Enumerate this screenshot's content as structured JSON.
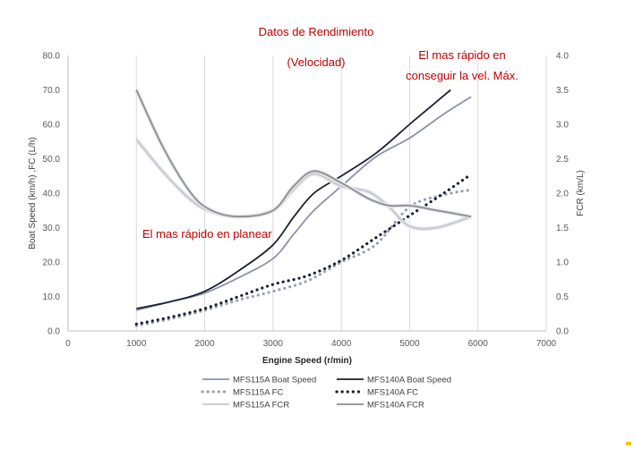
{
  "chart_data": {
    "type": "line",
    "title": "Datos de Rendimiento",
    "subtitle": "(Velocidad)",
    "xlabel": "Engine Speed (r/min)",
    "ylabel_left": "Boat Speed (km/h) ,FC (L/h)",
    "ylabel_right": "FCR (km/L)",
    "xlim": [
      0,
      7000
    ],
    "ylim_left": [
      0,
      80
    ],
    "ylim_right": [
      0,
      4
    ],
    "x_ticks": [
      0,
      1000,
      2000,
      3000,
      4000,
      5000,
      6000,
      7000
    ],
    "x_tick_labels": [
      "0",
      "1000",
      "2000",
      "3000",
      "4000",
      "5000",
      "6000",
      "7000"
    ],
    "y_left_ticks": [
      0,
      10,
      20,
      30,
      40,
      50,
      60,
      70,
      80
    ],
    "y_left_tick_labels": [
      "0.0",
      "10.0",
      "20.0",
      "30.0",
      "40.0",
      "50.0",
      "60.0",
      "70.0",
      "80.0"
    ],
    "y_right_ticks": [
      0,
      0.5,
      1,
      1.5,
      2,
      2.5,
      3,
      3.5,
      4
    ],
    "y_right_tick_labels": [
      "0.0",
      "0.5",
      "1.0",
      "1.5",
      "2.0",
      "2.5",
      "3.0",
      "3.5",
      "4.0"
    ],
    "grid": "vertical",
    "legend_placement": "bottom",
    "annotations": [
      "El mas rápido en",
      "conseguir la vel. Máx.",
      "El mas rápido en planear"
    ],
    "series": [
      {
        "name": "MFS115A Boat Speed",
        "axis": "left",
        "style": "solid",
        "color": "#8c93a8",
        "x": [
          1000,
          1500,
          2000,
          2500,
          3000,
          3300,
          3600,
          4000,
          4500,
          5000,
          5500,
          5900
        ],
        "y": [
          6.0,
          8.5,
          11.0,
          15.5,
          21.0,
          28.0,
          35.0,
          42.0,
          50.5,
          56.0,
          63.0,
          68.0
        ]
      },
      {
        "name": "MFS140A Boat Speed",
        "axis": "left",
        "style": "solid",
        "color": "#1a1f33",
        "x": [
          1000,
          1500,
          2000,
          2500,
          3000,
          3300,
          3600,
          4000,
          4500,
          5000,
          5300,
          5600
        ],
        "y": [
          6.5,
          8.5,
          11.5,
          17.5,
          25.0,
          33.0,
          40.0,
          45.0,
          51.5,
          60.0,
          65.0,
          70.0
        ]
      },
      {
        "name": "MFS115A FC",
        "axis": "left",
        "style": "dotted",
        "color": "#9aa0ae",
        "x": [
          1000,
          1500,
          2000,
          2500,
          3000,
          3500,
          4000,
          4500,
          5000,
          5500,
          5900
        ],
        "y": [
          1.5,
          3.5,
          6.0,
          9.0,
          11.5,
          14.5,
          20.0,
          25.0,
          36.0,
          39.5,
          41.0
        ]
      },
      {
        "name": "MFS140A FC",
        "axis": "left",
        "style": "dotted",
        "color": "#1a1f33",
        "x": [
          1000,
          1500,
          2000,
          2500,
          3000,
          3500,
          4000,
          4500,
          5000,
          5500,
          5900
        ],
        "y": [
          2.0,
          4.0,
          6.5,
          10.0,
          13.5,
          16.0,
          20.5,
          27.0,
          33.5,
          40.0,
          45.5
        ]
      },
      {
        "name": "MFS115A FCR",
        "axis": "right",
        "style": "solid",
        "color": "#c5c8cf",
        "x": [
          1000,
          1400,
          1800,
          2100,
          2500,
          3000,
          3300,
          3600,
          4000,
          4400,
          4700,
          5000,
          5400,
          5900
        ],
        "y": [
          2.78,
          2.3,
          1.9,
          1.73,
          1.66,
          1.75,
          2.05,
          2.28,
          2.1,
          2.02,
          1.8,
          1.52,
          1.5,
          1.66
        ]
      },
      {
        "name": "MFS140A FCR",
        "axis": "right",
        "style": "solid",
        "color": "#8c8c91",
        "x": [
          1000,
          1400,
          1800,
          2100,
          2500,
          3000,
          3300,
          3600,
          4000,
          4400,
          4700,
          5000,
          5400,
          5900
        ],
        "y": [
          3.5,
          2.65,
          2.0,
          1.75,
          1.66,
          1.75,
          2.1,
          2.32,
          2.15,
          1.92,
          1.82,
          1.82,
          1.75,
          1.66
        ]
      }
    ]
  },
  "colors": {
    "annotation": "#c00000",
    "grid": "#d9d9d9",
    "accent_mark": "#f2c500"
  }
}
